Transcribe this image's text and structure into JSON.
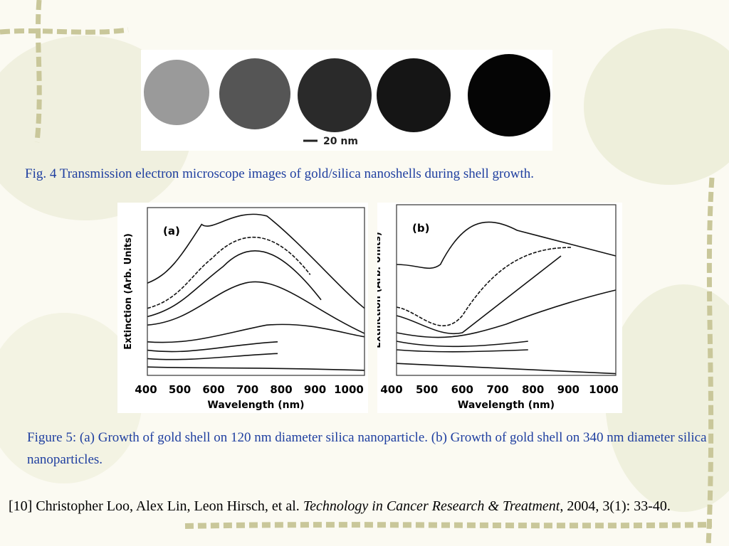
{
  "figure4": {
    "scale_bar": "20 nm",
    "caption": "Fig. 4 Transmission electron microscope images of gold/silica nanoshells during shell growth."
  },
  "figure5": {
    "panels": [
      {
        "label": "(a)",
        "x_label": "Wavelength (nm)",
        "y_label": "Extinction (Arb. Units)",
        "xticks": [
          400,
          500,
          600,
          700,
          800,
          900,
          1000
        ]
      },
      {
        "label": "(b)",
        "x_label": "Wavelength (nm)",
        "y_label": "Extinction (Arb. Units)",
        "xticks": [
          400,
          500,
          600,
          700,
          800,
          900,
          1000
        ]
      }
    ],
    "caption": "Figure 5: (a) Growth of gold shell on 120 nm diameter silica nanoparticle. (b) Growth of gold shell on 340 nm diameter silica nanoparticles."
  },
  "reference": {
    "text": "[10] Christopher Loo, Alex Lin, Leon Hirsch, et al. ",
    "journal": "Technology in Cancer Research & Treatment",
    "details": ", 2004, 3(1): 33-40."
  }
}
